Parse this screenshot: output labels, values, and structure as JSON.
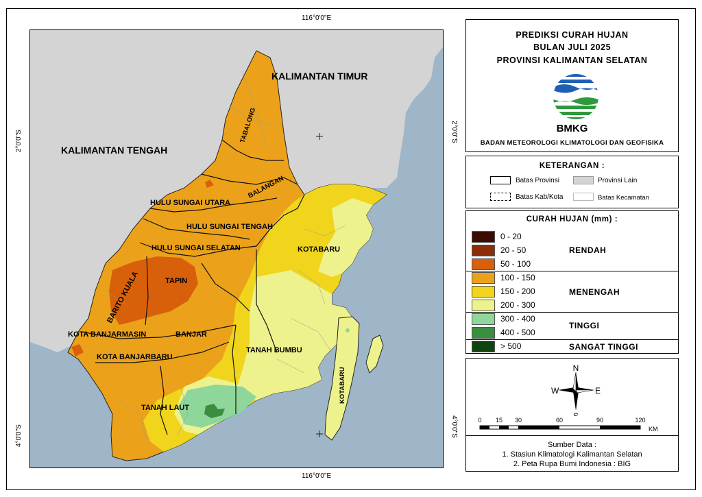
{
  "map": {
    "graticule": {
      "top_lon": "116°0'0\"E",
      "bottom_lon": "116°0'0\"E",
      "left_lat_upper": "2°0'0\"S",
      "left_lat_lower": "4°0'0\"S",
      "right_lat_upper": "2°0'0\"S",
      "right_lat_lower": "4°0'0\"S"
    },
    "labels": {
      "kaltim": "KALIMANTAN TIMUR",
      "kalteng": "KALIMANTAN TENGAH",
      "tabalong": "TABALONG",
      "balangan": "BALANGAN",
      "hsu": "HULU SUNGAI UTARA",
      "hst": "HULU SUNGAI TENGAH",
      "hss": "HULU SUNGAI SELATAN",
      "kotabaru_main": "KOTABARU",
      "tapin": "TAPIN",
      "batola": "BARITO KUALA",
      "banjarmasin": "KOTA BANJARMASIN",
      "banjar": "BANJAR",
      "banjarbaru": "KOTA BANJARBARU",
      "tanah_bumbu": "TANAH BUMBU",
      "tanah_laut": "TANAH LAUT",
      "kotabaru_island": "KOTABARU"
    },
    "colors": {
      "sea": "#9fb6c8",
      "other_province": "#d4d4d4",
      "c0_20": "#3a0c02",
      "c20_50": "#8b2d07",
      "c50_100": "#d9600b",
      "c100_150": "#eba21a",
      "c150_200": "#f0d51c",
      "c200_300": "#eef28c",
      "c300_400": "#8fd69a",
      "c400_500": "#3a8f3f",
      "c500": "#0f4410"
    }
  },
  "title": {
    "line1": "PREDIKSI CURAH HUJAN",
    "line2": "BULAN JULI 2025",
    "line3": "PROVINSI KALIMANTAN SELATAN",
    "logo_text": "BMKG",
    "agency": "BADAN METEOROLOGI KLIMATOLOGI DAN GEOFISIKA"
  },
  "keterangan": {
    "heading": "KETERANGAN :",
    "items": [
      {
        "label": "Batas Provinsi"
      },
      {
        "label": "Provinsi Lain"
      },
      {
        "label": "Batas Kab/Kota"
      },
      {
        "label": "Batas Kecamatan"
      }
    ]
  },
  "curah_hujan": {
    "heading": "CURAH HUJAN (mm) :",
    "classes": [
      {
        "range": "0 - 20",
        "color": "#3a0c02"
      },
      {
        "range": "20 - 50",
        "color": "#8b2d07"
      },
      {
        "range": "50 - 100",
        "color": "#d9600b"
      },
      {
        "range": "100 - 150",
        "color": "#eba21a"
      },
      {
        "range": "150  - 200",
        "color": "#f0d51c"
      },
      {
        "range": "200 - 300",
        "color": "#eef28c"
      },
      {
        "range": "300 - 400",
        "color": "#8fd69a"
      },
      {
        "range": "400 - 500",
        "color": "#3a8f3f"
      },
      {
        "range": "> 500",
        "color": "#0f4410"
      }
    ],
    "categories": {
      "rendah": "RENDAH",
      "menengah": "MENENGAH",
      "tinggi": "TINGGI",
      "sangat_tinggi": "SANGAT TINGGI"
    }
  },
  "compass": {
    "n": "N",
    "s": "S",
    "e": "E",
    "w": "W"
  },
  "scale": {
    "ticks": [
      "0",
      "15",
      "30",
      "60",
      "90",
      "120"
    ],
    "unit": "KM"
  },
  "source": {
    "heading": "Sumber Data :",
    "item1": "1. Stasiun Klimatologi Kalimantan Selatan",
    "item2": "2. Peta Rupa Bumi Indonesia : BIG"
  }
}
